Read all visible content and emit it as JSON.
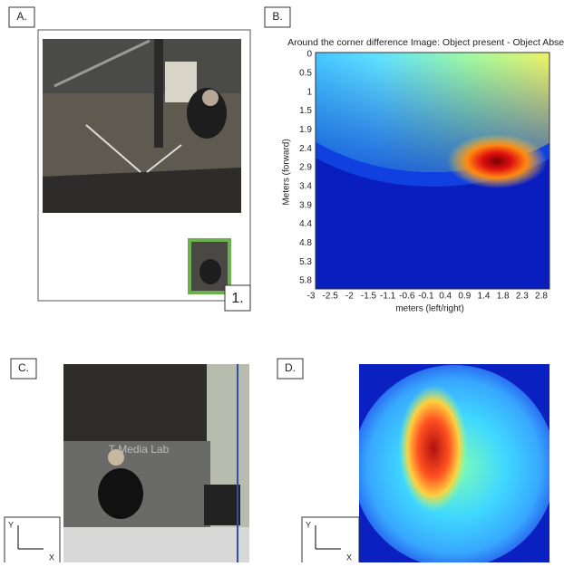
{
  "panels": {
    "a": {
      "label": "A.",
      "inset_label": "1."
    },
    "b": {
      "label": "B.",
      "title": "Around the corner difference Image: Object present - Object Absent",
      "y_axis_label": "Meters (forward)",
      "x_axis_label": "meters (left/right)",
      "y_ticks": [
        "0",
        "0.5",
        "1",
        "1.5",
        "1.9",
        "2.4",
        "2.9",
        "3.4",
        "3.9",
        "4.4",
        "4.8",
        "5.3",
        "5.8"
      ],
      "x_ticks": [
        "-3",
        "-2.5",
        "-2",
        "-1.5",
        "-1.1",
        "-0.6",
        "-0.1",
        "0.4",
        "0.9",
        "1.4",
        "1.8",
        "2.3",
        "2.8"
      ]
    },
    "c": {
      "label": "C.",
      "photo_text": "T Media Lab",
      "axis_y": "Y",
      "axis_x": "X"
    },
    "d": {
      "label": "D.",
      "axis_y": "Y",
      "axis_x": "X"
    }
  }
}
